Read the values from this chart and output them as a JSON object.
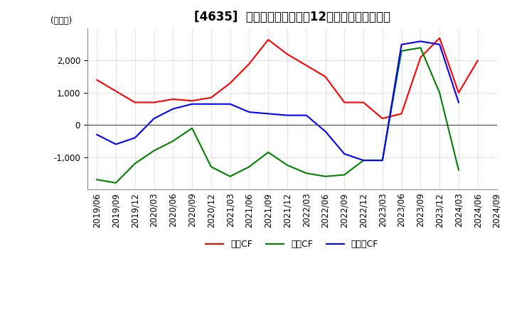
{
  "title": "[4635]  キャッシュフローの12か月移動合計の推移",
  "ylabel": "(百万円)",
  "x_labels": [
    "2019/06",
    "2019/09",
    "2019/12",
    "2020/03",
    "2020/06",
    "2020/09",
    "2020/12",
    "2021/03",
    "2021/06",
    "2021/09",
    "2021/12",
    "2022/03",
    "2022/06",
    "2022/09",
    "2022/12",
    "2023/03",
    "2023/06",
    "2023/09",
    "2023/12",
    "2024/03",
    "2024/06",
    "2024/09"
  ],
  "operating_cf": [
    1400,
    1050,
    700,
    700,
    800,
    750,
    850,
    1300,
    1900,
    2650,
    2200,
    1850,
    1500,
    700,
    700,
    200,
    350,
    2100,
    2700,
    1000,
    2000,
    null
  ],
  "investing_cf": [
    -1700,
    -1800,
    -1200,
    -800,
    -500,
    -100,
    -1300,
    -1600,
    -1300,
    -850,
    -1250,
    -1500,
    -1600,
    -1550,
    -1100,
    -1100,
    2300,
    2400,
    1000,
    -1400,
    null,
    null
  ],
  "free_cf": [
    -300,
    -600,
    -400,
    200,
    500,
    650,
    650,
    650,
    400,
    350,
    300,
    300,
    -200,
    -900,
    -1100,
    -1100,
    2500,
    2600,
    2500,
    700,
    null,
    null
  ],
  "colors": {
    "operating": "#ff0000",
    "investing": "#008000",
    "free": "#0000ff"
  },
  "ylim": [
    -2000,
    3000
  ],
  "yticks": [
    -1000,
    0,
    1000,
    2000
  ],
  "grid_color": "#aaaaaa",
  "title_fontsize": 12,
  "label_fontsize": 8.5,
  "legend_labels": [
    "営業CF",
    "投資CF",
    "フリーCF"
  ]
}
